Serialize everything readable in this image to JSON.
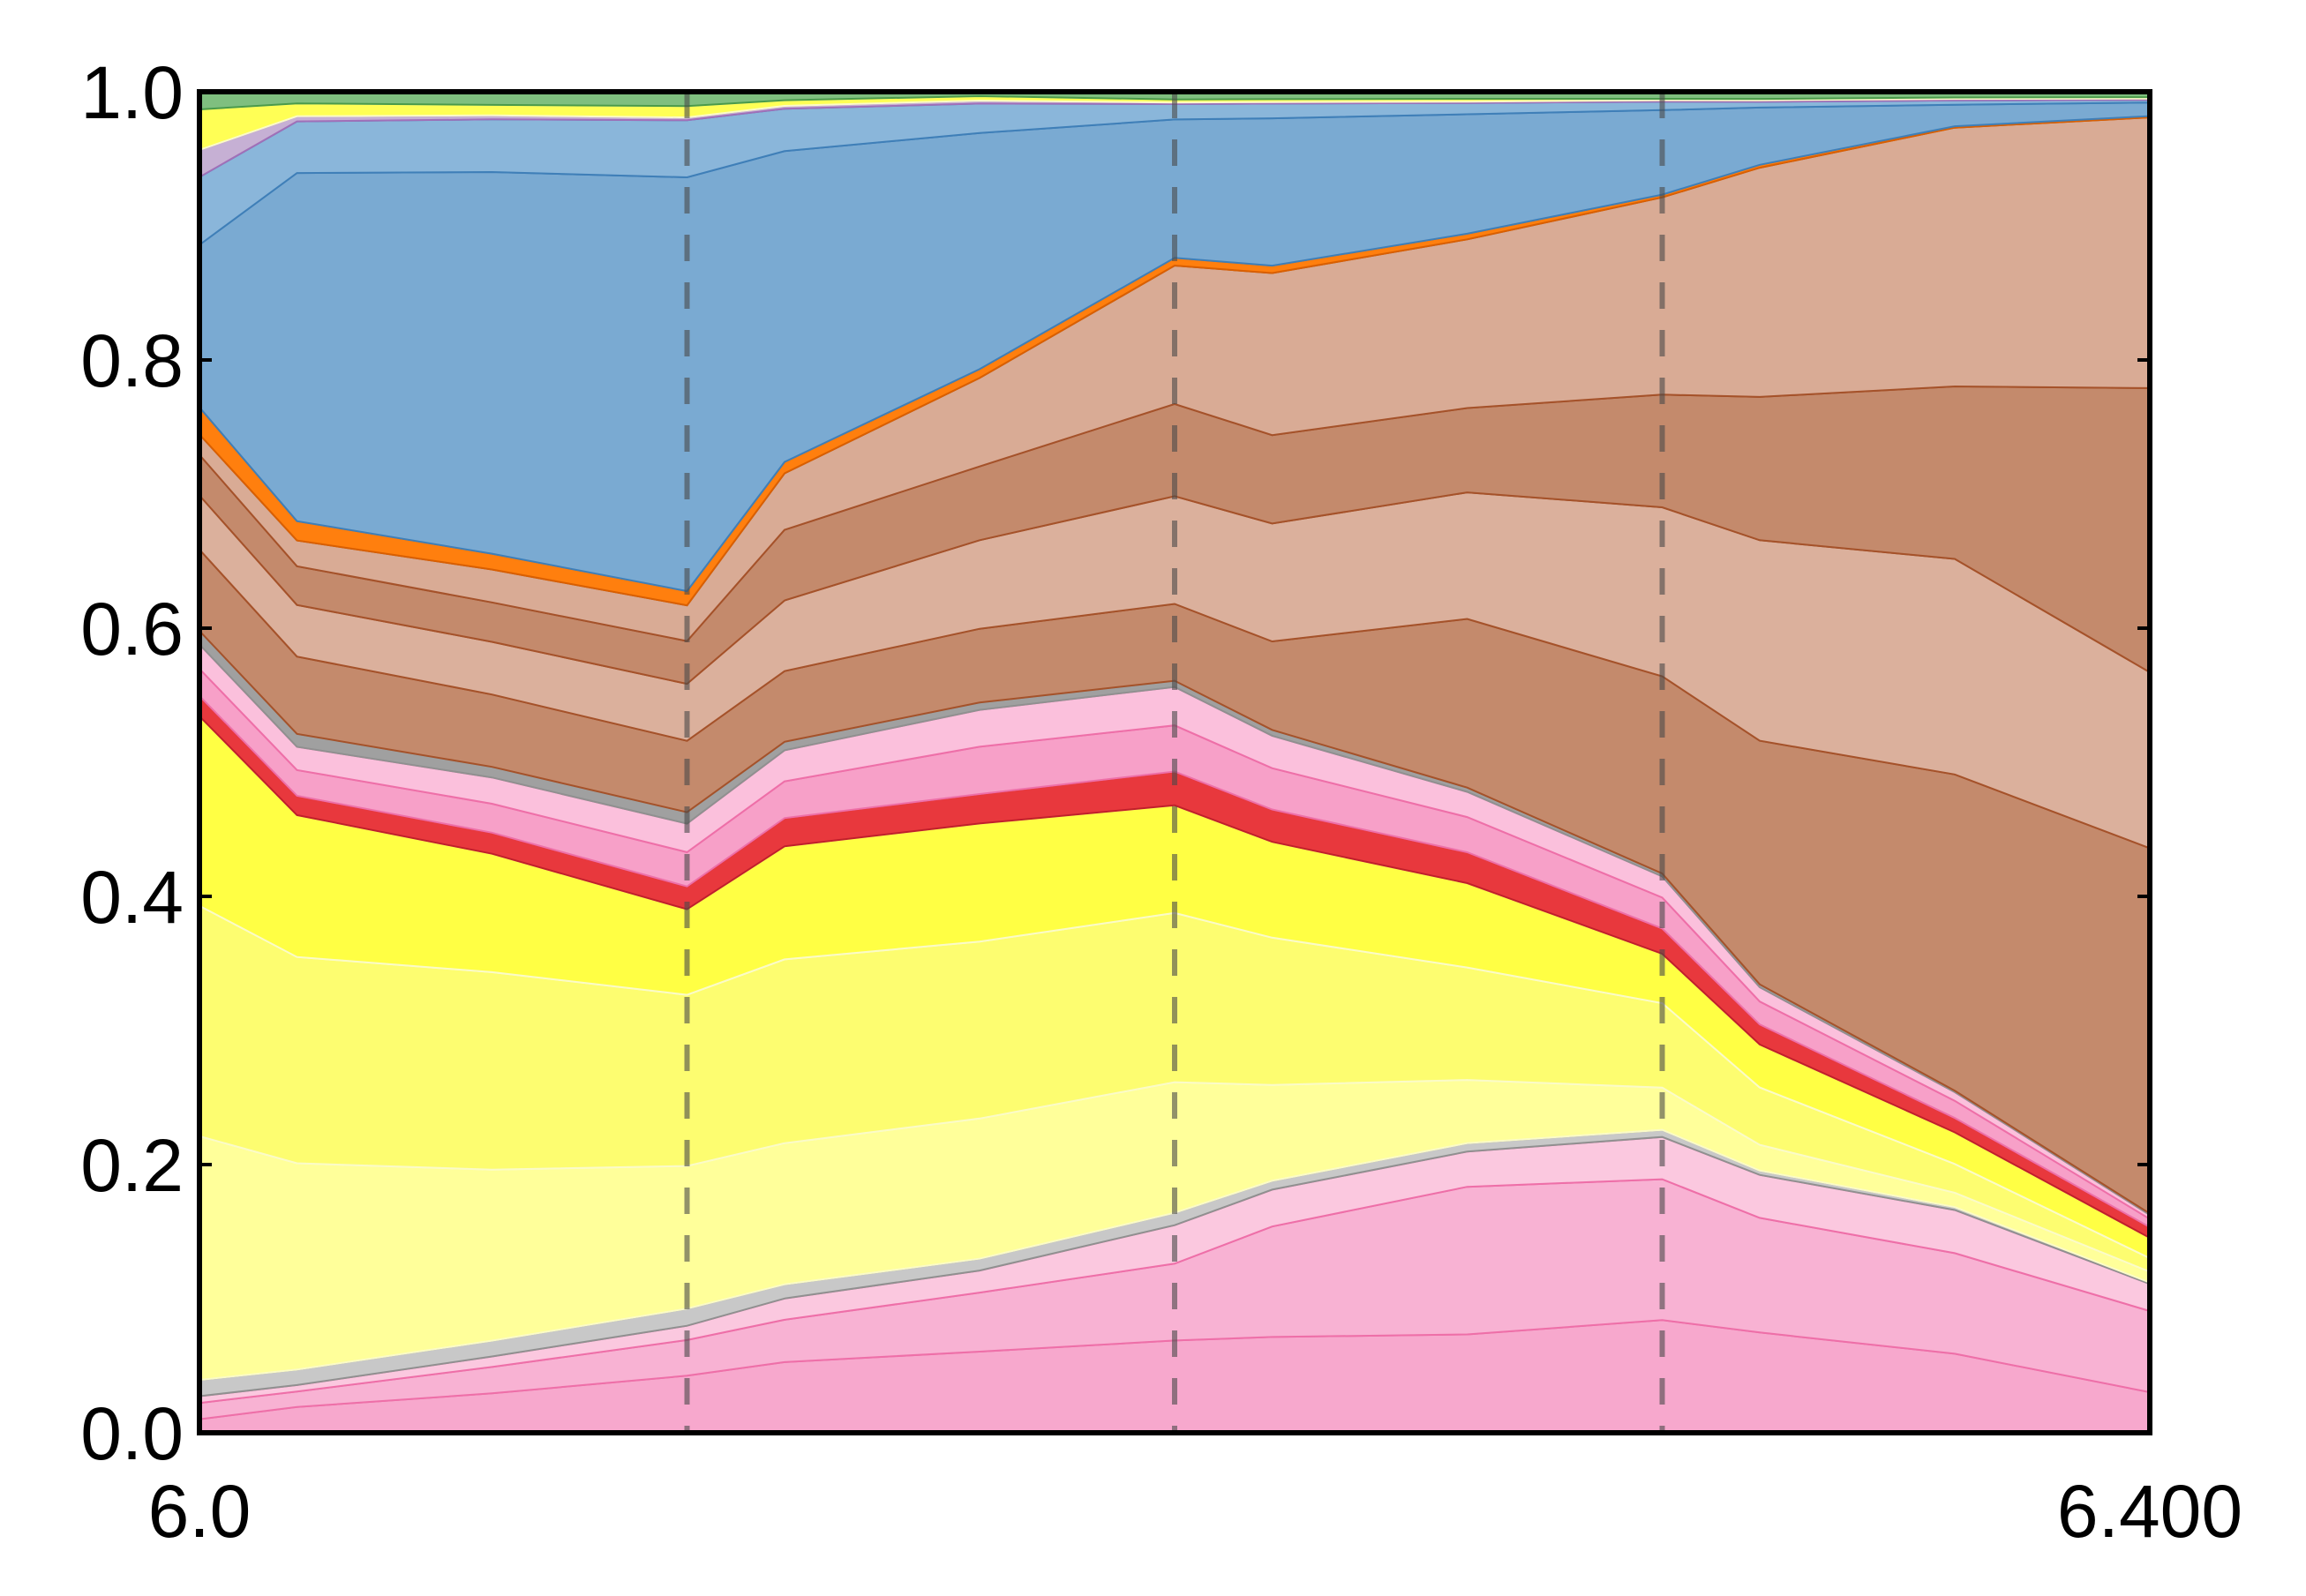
{
  "chart_data": {
    "type": "area",
    "stacked": true,
    "normalized": true,
    "x_tick_labels": [
      "6.0",
      "6.400"
    ],
    "y_tick_labels": [
      "0.0",
      "0.2",
      "0.4",
      "0.6",
      "0.8",
      "1.0"
    ],
    "xlim": [
      6.0,
      6.4
    ],
    "ylim": [
      0.0,
      1.0
    ],
    "vlines_x": [
      6.1,
      6.2,
      6.3
    ],
    "x": [
      6.0,
      6.02,
      6.06,
      6.1,
      6.12,
      6.16,
      6.2,
      6.22,
      6.26,
      6.3,
      6.32,
      6.36,
      6.4
    ],
    "series": [
      {
        "group": "pink",
        "color": "#f7a8cd",
        "values": [
          0.01,
          0.02,
          0.03,
          0.04,
          0.05,
          0.055,
          0.06,
          0.065,
          0.07,
          0.08,
          0.07,
          0.055,
          0.03
        ]
      },
      {
        "group": "pink",
        "color": "#f8b2d3",
        "values": [
          0.012,
          0.012,
          0.02,
          0.025,
          0.03,
          0.04,
          0.05,
          0.075,
          0.105,
          0.1,
          0.08,
          0.07,
          0.06
        ]
      },
      {
        "group": "pink",
        "color": "#fbc8df",
        "values": [
          0.005,
          0.005,
          0.008,
          0.01,
          0.015,
          0.015,
          0.025,
          0.025,
          0.025,
          0.03,
          0.03,
          0.03,
          0.02
        ]
      },
      {
        "group": "grey",
        "color": "#c8c8c8",
        "values": [
          0.012,
          0.012,
          0.012,
          0.012,
          0.01,
          0.008,
          0.008,
          0.006,
          0.006,
          0.005,
          0.003,
          0.002,
          0.001
        ]
      },
      {
        "group": "yellow",
        "color": "#ffff9a",
        "values": [
          0.18,
          0.16,
          0.13,
          0.1,
          0.1,
          0.095,
          0.085,
          0.065,
          0.045,
          0.03,
          0.018,
          0.01,
          0.008
        ]
      },
      {
        "group": "yellow",
        "color": "#fdfd70",
        "values": [
          0.17,
          0.16,
          0.15,
          0.12,
          0.13,
          0.12,
          0.11,
          0.1,
          0.08,
          0.06,
          0.04,
          0.02,
          0.01
        ]
      },
      {
        "group": "yellow",
        "color": "#ffff44",
        "values": [
          0.14,
          0.11,
          0.09,
          0.06,
          0.08,
          0.08,
          0.07,
          0.065,
          0.06,
          0.035,
          0.03,
          0.022,
          0.015
        ]
      },
      {
        "group": "red",
        "color": "#e8383d",
        "values": [
          0.015,
          0.015,
          0.016,
          0.016,
          0.02,
          0.02,
          0.022,
          0.022,
          0.022,
          0.018,
          0.014,
          0.01,
          0.008
        ]
      },
      {
        "group": "pink",
        "color": "#f7a0c8",
        "values": [
          0.02,
          0.02,
          0.022,
          0.024,
          0.026,
          0.032,
          0.03,
          0.028,
          0.025,
          0.022,
          0.016,
          0.012,
          0.006
        ]
      },
      {
        "group": "pink",
        "color": "#fbc0dc",
        "values": [
          0.018,
          0.018,
          0.02,
          0.02,
          0.022,
          0.025,
          0.025,
          0.022,
          0.018,
          0.015,
          0.01,
          0.006,
          0.003
        ]
      },
      {
        "group": "grey",
        "color": "#a0a0a0",
        "values": [
          0.01,
          0.01,
          0.008,
          0.008,
          0.006,
          0.005,
          0.004,
          0.004,
          0.003,
          0.002,
          0.002,
          0.001,
          0.001
        ]
      },
      {
        "group": "brown",
        "color": "#c48a6c",
        "values": [
          0.06,
          0.06,
          0.055,
          0.05,
          0.05,
          0.05,
          0.05,
          0.06,
          0.12,
          0.14,
          0.17,
          0.22,
          0.27
        ]
      },
      {
        "group": "brown",
        "color": "#dbb09c",
        "values": [
          0.04,
          0.04,
          0.04,
          0.04,
          0.05,
          0.06,
          0.07,
          0.08,
          0.09,
          0.12,
          0.14,
          0.15,
          0.13
        ]
      },
      {
        "group": "brown",
        "color": "#c48a6c",
        "values": [
          0.03,
          0.03,
          0.03,
          0.03,
          0.05,
          0.05,
          0.06,
          0.06,
          0.06,
          0.08,
          0.1,
          0.12,
          0.21
        ]
      },
      {
        "group": "brown",
        "color": "#d9ab95",
        "values": [
          0.015,
          0.02,
          0.025,
          0.025,
          0.04,
          0.06,
          0.09,
          0.11,
          0.12,
          0.14,
          0.16,
          0.18,
          0.2
        ]
      },
      {
        "group": "orange",
        "color": "#ff7f0e",
        "values": [
          0.02,
          0.015,
          0.012,
          0.01,
          0.008,
          0.006,
          0.005,
          0.005,
          0.004,
          0.002,
          0.002,
          0.001,
          0.001
        ]
      },
      {
        "group": "blue",
        "color": "#7aaad2",
        "values": [
          0.12,
          0.27,
          0.29,
          0.29,
          0.22,
          0.16,
          0.09,
          0.1,
          0.085,
          0.06,
          0.04,
          0.015,
          0.01
        ]
      },
      {
        "group": "blue",
        "color": "#8ab6da",
        "values": [
          0.05,
          0.04,
          0.04,
          0.04,
          0.03,
          0.02,
          0.01,
          0.01,
          0.008,
          0.006,
          0.004,
          0.003,
          0.002
        ]
      },
      {
        "group": "misc",
        "color": "#c6b0d4",
        "values": [
          0.02,
          0.004,
          0.003,
          0.002,
          0.002,
          0.002,
          0.001,
          0.001,
          0.001,
          0.001,
          0.001,
          0.001,
          0.001
        ]
      },
      {
        "group": "yellow",
        "color": "#ffff55",
        "values": [
          0.03,
          0.01,
          0.008,
          0.008,
          0.004,
          0.003,
          0.002,
          0.002,
          0.002,
          0.001,
          0.001,
          0.001,
          0.001
        ]
      },
      {
        "group": "green",
        "color": "#7fbf7f",
        "values": [
          0.013,
          0.009,
          0.01,
          0.01,
          0.006,
          0.003,
          0.005,
          0.005,
          0.005,
          0.005,
          0.005,
          0.004,
          0.004
        ]
      }
    ]
  }
}
